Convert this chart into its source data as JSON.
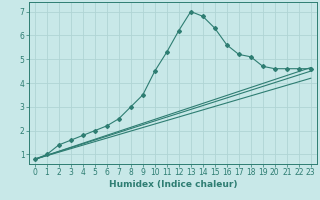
{
  "title": "",
  "xlabel": "Humidex (Indice chaleur)",
  "ylabel": "",
  "bg_color": "#c8e8e8",
  "grid_color": "#b0d4d4",
  "line_color": "#2e7d72",
  "xlim": [
    -0.5,
    23.5
  ],
  "ylim": [
    0.6,
    7.4
  ],
  "xticks": [
    0,
    1,
    2,
    3,
    4,
    5,
    6,
    7,
    8,
    9,
    10,
    11,
    12,
    13,
    14,
    15,
    16,
    17,
    18,
    19,
    20,
    21,
    22,
    23
  ],
  "yticks": [
    1,
    2,
    3,
    4,
    5,
    6,
    7
  ],
  "series": [
    {
      "x": [
        0,
        1,
        2,
        3,
        4,
        5,
        6,
        7,
        8,
        9,
        10,
        11,
        12,
        13,
        14,
        15,
        16,
        17,
        18,
        19,
        20,
        21,
        22,
        23
      ],
      "y": [
        0.8,
        1.0,
        1.4,
        1.6,
        1.8,
        2.0,
        2.2,
        2.5,
        3.0,
        3.5,
        4.5,
        5.3,
        6.2,
        7.0,
        6.8,
        6.3,
        5.6,
        5.2,
        5.1,
        4.7,
        4.6,
        4.6,
        4.6,
        4.6
      ],
      "marker": true
    },
    {
      "x": [
        0,
        23
      ],
      "y": [
        0.8,
        4.65
      ],
      "marker": false
    },
    {
      "x": [
        0,
        23
      ],
      "y": [
        0.8,
        4.5
      ],
      "marker": false
    },
    {
      "x": [
        0,
        23
      ],
      "y": [
        0.8,
        4.2
      ],
      "marker": false
    }
  ]
}
